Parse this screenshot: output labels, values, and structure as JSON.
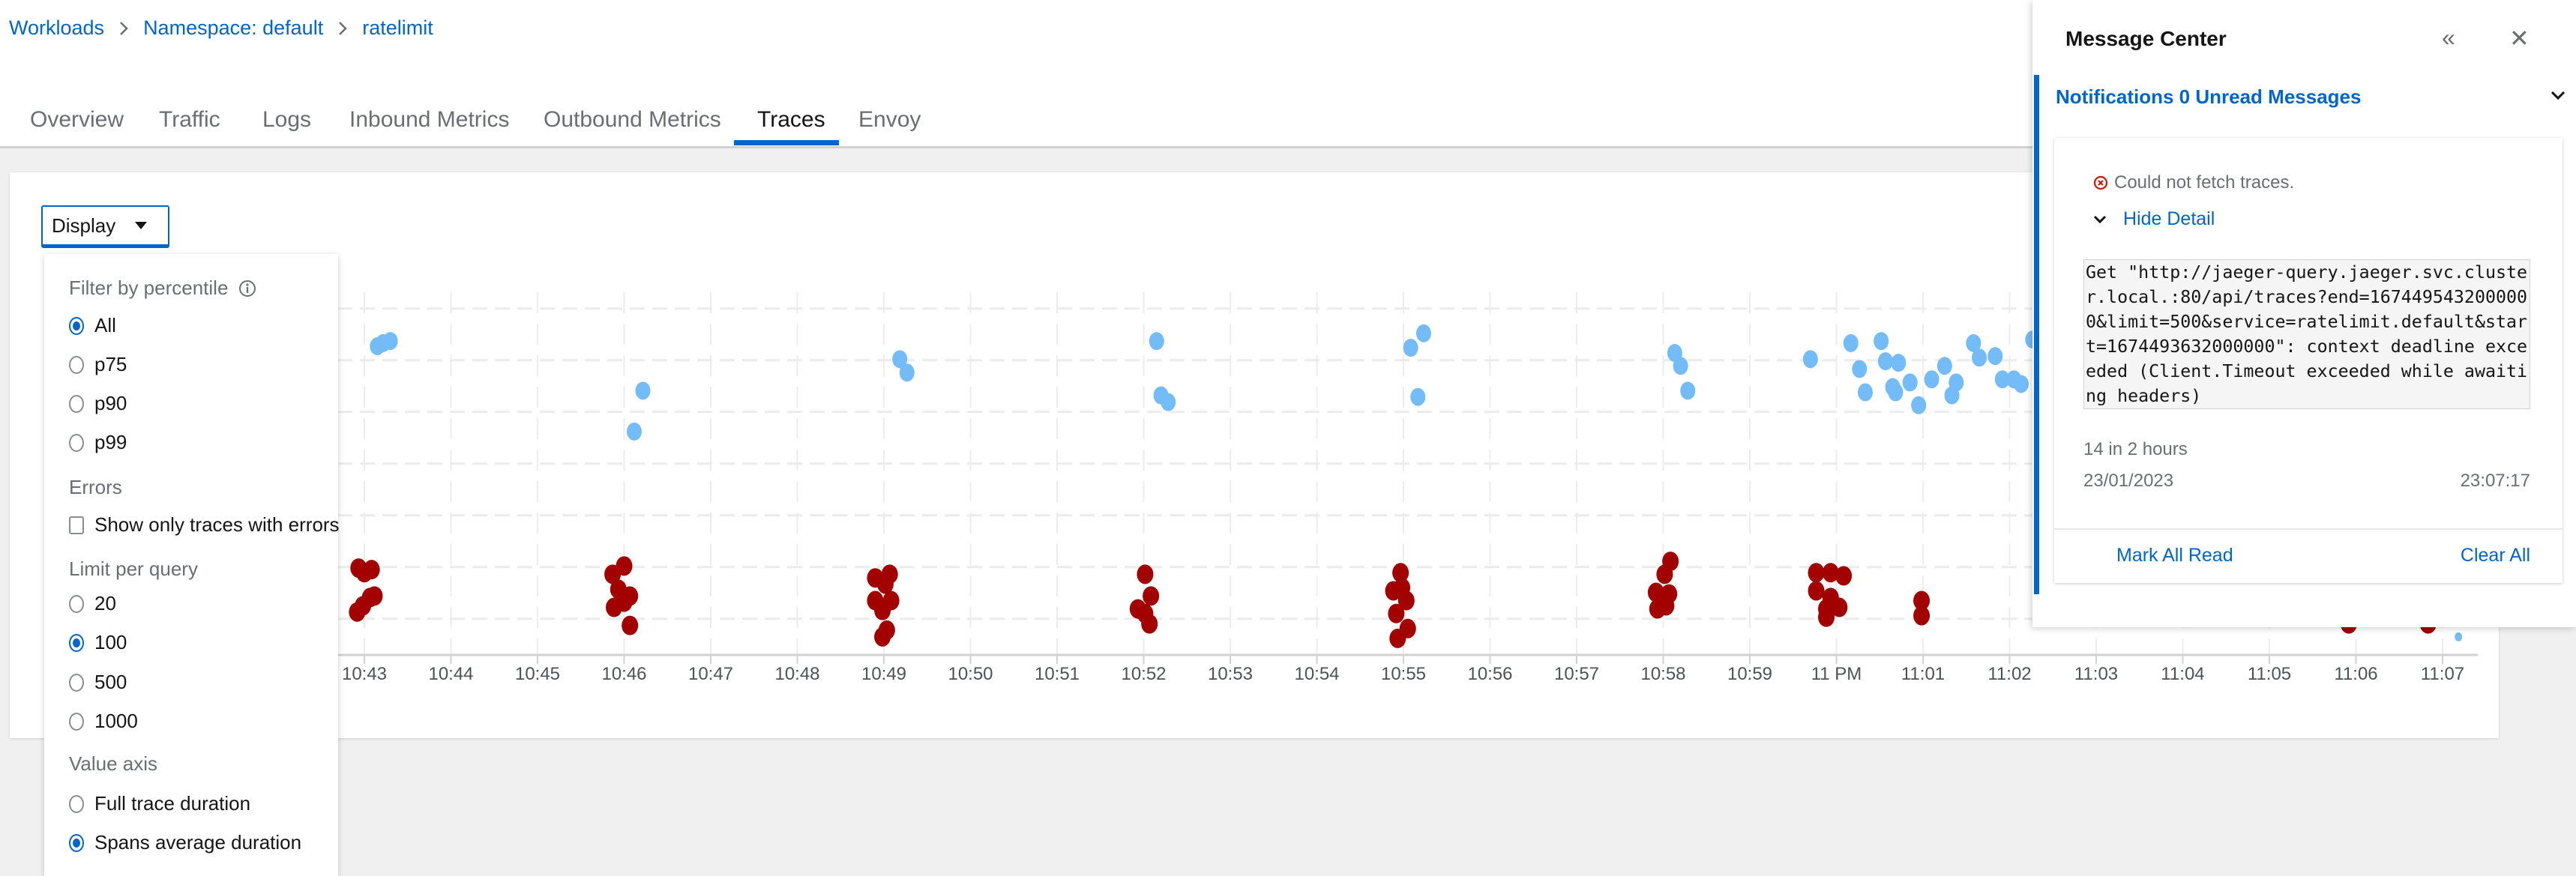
{
  "breadcrumb": [
    "Workloads",
    "Namespace: default",
    "ratelimit"
  ],
  "tabs": [
    {
      "label": "Overview",
      "active": false
    },
    {
      "label": "Traffic",
      "active": false
    },
    {
      "label": "Logs",
      "active": false
    },
    {
      "label": "Inbound Metrics",
      "active": false
    },
    {
      "label": "Outbound Metrics",
      "active": false
    },
    {
      "label": "Traces",
      "active": true
    },
    {
      "label": "Envoy",
      "active": false
    }
  ],
  "display_menu": {
    "button_label": "Display",
    "percentile_heading": "Filter by percentile",
    "percentile_options": [
      "All",
      "p75",
      "p90",
      "p99"
    ],
    "percentile_selected": "All",
    "errors_heading": "Errors",
    "errors_checkbox": "Show only traces with errors",
    "errors_checked": false,
    "limit_heading": "Limit per query",
    "limit_options": [
      "20",
      "100",
      "500",
      "1000"
    ],
    "limit_selected": "100",
    "value_axis_heading": "Value axis",
    "value_axis_options": [
      "Full trace duration",
      "Spans average duration"
    ],
    "value_axis_selected": "Spans average duration"
  },
  "message_center": {
    "title": "Message Center",
    "notifications_header": "Notifications 0 Unread Messages",
    "message": {
      "summary": "Could not fetch traces.",
      "toggle": "Hide Detail",
      "detail": "Get \"http://jaeger-query.jaeger.svc.cluster.local.:80/api/traces?end=1674495432000000&limit=500&service=ratelimit.default&start=1674493632000000\": context deadline exceeded (Client.Timeout exceeded while awaiting headers)",
      "count": "14 in 2 hours",
      "date": "23/01/2023",
      "time": "23:07:17"
    },
    "mark_all_read": "Mark All Read",
    "clear_all": "Clear All"
  },
  "colors": {
    "accent": "#0066cc",
    "error_traces": "#a30000",
    "ok_traces": "#73bcf7"
  },
  "chart_data": {
    "type": "scatter",
    "grid": true,
    "x_ticks": [
      "10:43",
      "10:44",
      "10:45",
      "10:46",
      "10:47",
      "10:48",
      "10:49",
      "10:50",
      "10:51",
      "10:52",
      "10:53",
      "10:54",
      "10:55",
      "10:56",
      "10:57",
      "10:58",
      "10:59",
      "11 PM",
      "11:01",
      "11:02",
      "11:03",
      "11:04",
      "11:05",
      "11:06",
      "11:07"
    ],
    "series": [
      {
        "color": "#73bcf7",
        "points": [
          [
            "10:43:09",
            6.27
          ],
          [
            "10:43:13",
            6.33
          ],
          [
            "10:43:18",
            6.37
          ],
          [
            "10:46:13",
            5.41
          ],
          [
            "10:46:07",
            4.62
          ],
          [
            "10:49:11",
            6.02
          ],
          [
            "10:49:16",
            5.76
          ],
          [
            "10:52:09",
            6.37
          ],
          [
            "10:52:12",
            5.32
          ],
          [
            "10:52:17",
            5.19
          ],
          [
            "10:55:05",
            6.24
          ],
          [
            "10:55:14",
            6.52
          ],
          [
            "10:55:10",
            5.29
          ],
          [
            "10:58:08",
            6.14
          ],
          [
            "10:58:12",
            5.89
          ],
          [
            "10:58:17",
            5.41
          ],
          [
            "10:59:42",
            6.02
          ],
          [
            "11:00:10",
            6.33
          ],
          [
            "11:00:16",
            5.83
          ],
          [
            "11:00:20",
            5.38
          ],
          [
            "11:00:31",
            6.37
          ],
          [
            "11:00:34",
            5.98
          ],
          [
            "11:00:39",
            5.48
          ],
          [
            "11:00:43",
            5.95
          ],
          [
            "11:00:41",
            5.38
          ],
          [
            "11:00:51",
            5.57
          ],
          [
            "11:00:57",
            5.13
          ],
          [
            "11:01:06",
            5.63
          ],
          [
            "11:01:15",
            5.89
          ],
          [
            "11:01:20",
            5.32
          ],
          [
            "11:01:23",
            5.57
          ],
          [
            "11:01:35",
            6.33
          ],
          [
            "11:01:39",
            6.05
          ],
          [
            "11:01:50",
            6.08
          ],
          [
            "11:01:55",
            5.63
          ],
          [
            "11:02:03",
            5.63
          ],
          [
            "11:02:08",
            5.54
          ],
          [
            "11:02:16",
            6.4
          ],
          [
            "11:07:11",
            0.65
          ]
        ]
      },
      {
        "color": "#a30000",
        "points": [
          [
            "10:42:56",
            1.98
          ],
          [
            "10:43:00",
            1.89
          ],
          [
            "10:43:05",
            1.95
          ],
          [
            "10:43:04",
            1.41
          ],
          [
            "10:43:07",
            1.44
          ],
          [
            "10:42:55",
            1.13
          ],
          [
            "10:42:59",
            1.25
          ],
          [
            "10:45:52",
            1.86
          ],
          [
            "10:46:00",
            2.02
          ],
          [
            "10:45:56",
            1.57
          ],
          [
            "10:46:04",
            1.44
          ],
          [
            "10:45:53",
            1.22
          ],
          [
            "10:46:00",
            1.32
          ],
          [
            "10:46:04",
            0.87
          ],
          [
            "10:48:54",
            1.79
          ],
          [
            "10:49:04",
            1.86
          ],
          [
            "10:49:01",
            1.67
          ],
          [
            "10:48:54",
            1.35
          ],
          [
            "10:49:05",
            1.35
          ],
          [
            "10:48:59",
            1.16
          ],
          [
            "10:49:02",
            0.78
          ],
          [
            "10:48:59",
            0.65
          ],
          [
            "10:52:01",
            1.86
          ],
          [
            "10:52:05",
            1.44
          ],
          [
            "10:51:56",
            1.19
          ],
          [
            "10:52:01",
            1.1
          ],
          [
            "10:52:04",
            0.9
          ],
          [
            "10:54:59",
            1.6
          ],
          [
            "10:54:53",
            1.54
          ],
          [
            "10:55:02",
            1.35
          ],
          [
            "10:54:55",
            1.1
          ],
          [
            "10:55:03",
            0.81
          ],
          [
            "10:54:56",
            0.62
          ],
          [
            "10:54:58",
            1.89
          ],
          [
            "10:58:05",
            2.11
          ],
          [
            "10:58:01",
            1.86
          ],
          [
            "10:57:55",
            1.51
          ],
          [
            "10:58:04",
            1.48
          ],
          [
            "10:57:56",
            1.19
          ],
          [
            "10:58:02",
            1.25
          ],
          [
            "10:59:46",
            1.89
          ],
          [
            "10:59:56",
            1.89
          ],
          [
            "11:00:05",
            1.83
          ],
          [
            "10:59:46",
            1.54
          ],
          [
            "10:59:53",
            1.19
          ],
          [
            "11:00:02",
            1.22
          ],
          [
            "10:59:53",
            1.03
          ],
          [
            "10:59:56",
            1.41
          ],
          [
            "11:00:59",
            1.35
          ],
          [
            "11:00:59",
            1.06
          ],
          [
            "11:05:55",
            0.9
          ],
          [
            "11:06:50",
            0.9
          ]
        ]
      }
    ]
  }
}
